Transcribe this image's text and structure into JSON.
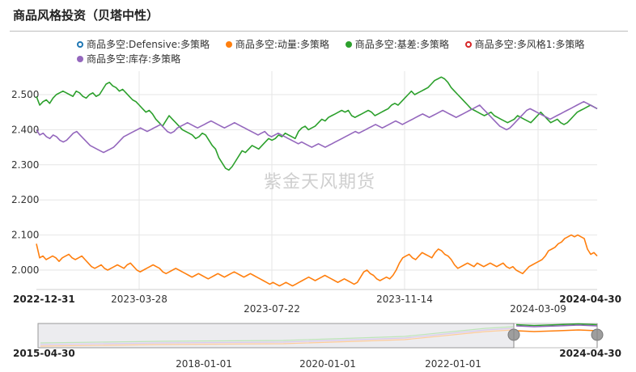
{
  "page_title": "商品风格投资（贝塔中性）",
  "watermark": "紫金天风期货",
  "chart_data": {
    "type": "line",
    "y_ticks": [
      "2.000",
      "2.100",
      "2.200",
      "2.300",
      "2.400",
      "2.500"
    ],
    "x_ticks_row1": [
      "2023-03-28",
      "2023-11-14"
    ],
    "x_ticks_row2": [
      "2023-07-22",
      "2024-03-09"
    ],
    "x_range_start": "2022-12-31",
    "x_range_end": "2024-04-30",
    "ylim": [
      1.955,
      2.56
    ],
    "grid": true,
    "legend_position": "top",
    "series": [
      {
        "name": "商品多空:Defensive:多策略",
        "color": "#1f77b4",
        "marker": "hollow",
        "visible": false,
        "values": []
      },
      {
        "name": "商品多空:动量:多策略",
        "color": "#ff7f0e",
        "marker": "filled",
        "visible": true,
        "values": [
          2.075,
          2.035,
          2.04,
          2.03,
          2.035,
          2.04,
          2.035,
          2.025,
          2.035,
          2.04,
          2.045,
          2.035,
          2.03,
          2.035,
          2.04,
          2.03,
          2.02,
          2.01,
          2.005,
          2.01,
          2.015,
          2.005,
          2.0,
          2.005,
          2.01,
          2.015,
          2.01,
          2.005,
          2.015,
          2.02,
          2.01,
          2.0,
          1.995,
          2.0,
          2.005,
          2.01,
          2.015,
          2.01,
          2.005,
          1.995,
          1.99,
          1.995,
          2.0,
          2.005,
          2.0,
          1.995,
          1.99,
          1.985,
          1.98,
          1.985,
          1.99,
          1.985,
          1.98,
          1.975,
          1.98,
          1.985,
          1.99,
          1.985,
          1.98,
          1.985,
          1.99,
          1.995,
          1.99,
          1.985,
          1.98,
          1.985,
          1.99,
          1.985,
          1.98,
          1.975,
          1.97,
          1.965,
          1.96,
          1.965,
          1.96,
          1.955,
          1.96,
          1.965,
          1.96,
          1.955,
          1.96,
          1.965,
          1.97,
          1.975,
          1.98,
          1.975,
          1.97,
          1.975,
          1.98,
          1.985,
          1.98,
          1.975,
          1.97,
          1.965,
          1.97,
          1.975,
          1.97,
          1.965,
          1.96,
          1.965,
          1.98,
          1.995,
          2.0,
          1.99,
          1.985,
          1.975,
          1.97,
          1.975,
          1.98,
          1.975,
          1.985,
          2.0,
          2.02,
          2.035,
          2.04,
          2.045,
          2.035,
          2.03,
          2.04,
          2.05,
          2.045,
          2.04,
          2.035,
          2.05,
          2.06,
          2.055,
          2.045,
          2.04,
          2.03,
          2.015,
          2.005,
          2.01,
          2.015,
          2.02,
          2.015,
          2.01,
          2.02,
          2.015,
          2.01,
          2.015,
          2.02,
          2.015,
          2.01,
          2.015,
          2.02,
          2.01,
          2.005,
          2.01,
          2.0,
          1.995,
          1.99,
          2.0,
          2.01,
          2.015,
          2.02,
          2.025,
          2.03,
          2.04,
          2.055,
          2.06,
          2.065,
          2.075,
          2.08,
          2.09,
          2.095,
          2.1,
          2.095,
          2.1,
          2.095,
          2.09,
          2.06,
          2.045,
          2.05,
          2.04
        ]
      },
      {
        "name": "商品多空:基差:多策略",
        "color": "#2ca02c",
        "marker": "filled",
        "visible": true,
        "values": [
          2.495,
          2.47,
          2.48,
          2.485,
          2.475,
          2.49,
          2.5,
          2.505,
          2.51,
          2.505,
          2.5,
          2.495,
          2.51,
          2.505,
          2.495,
          2.49,
          2.5,
          2.505,
          2.495,
          2.5,
          2.515,
          2.53,
          2.535,
          2.525,
          2.52,
          2.51,
          2.515,
          2.505,
          2.495,
          2.485,
          2.48,
          2.47,
          2.46,
          2.45,
          2.455,
          2.445,
          2.43,
          2.42,
          2.41,
          2.425,
          2.44,
          2.43,
          2.42,
          2.41,
          2.4,
          2.395,
          2.39,
          2.385,
          2.375,
          2.38,
          2.39,
          2.385,
          2.37,
          2.355,
          2.345,
          2.32,
          2.305,
          2.29,
          2.285,
          2.295,
          2.31,
          2.325,
          2.34,
          2.335,
          2.345,
          2.355,
          2.35,
          2.345,
          2.355,
          2.365,
          2.375,
          2.37,
          2.375,
          2.385,
          2.38,
          2.39,
          2.385,
          2.38,
          2.375,
          2.395,
          2.405,
          2.41,
          2.4,
          2.405,
          2.41,
          2.42,
          2.43,
          2.425,
          2.435,
          2.44,
          2.445,
          2.45,
          2.455,
          2.45,
          2.455,
          2.44,
          2.435,
          2.44,
          2.445,
          2.45,
          2.455,
          2.45,
          2.44,
          2.445,
          2.45,
          2.455,
          2.46,
          2.47,
          2.475,
          2.47,
          2.48,
          2.49,
          2.5,
          2.51,
          2.5,
          2.505,
          2.51,
          2.515,
          2.52,
          2.53,
          2.54,
          2.545,
          2.55,
          2.545,
          2.535,
          2.52,
          2.51,
          2.5,
          2.49,
          2.48,
          2.47,
          2.46,
          2.455,
          2.45,
          2.445,
          2.44,
          2.445,
          2.45,
          2.44,
          2.435,
          2.43,
          2.425,
          2.42,
          2.425,
          2.43,
          2.44,
          2.435,
          2.43,
          2.425,
          2.42,
          2.43,
          2.44,
          2.45,
          2.44,
          2.43,
          2.42,
          2.425,
          2.43,
          2.42,
          2.415,
          2.42,
          2.43,
          2.44,
          2.45,
          2.455,
          2.46,
          2.465,
          2.47,
          2.465,
          2.46
        ]
      },
      {
        "name": "商品多空:多风格1:多策略",
        "color": "#d62728",
        "marker": "hollow",
        "visible": false,
        "values": []
      },
      {
        "name": "商品多空:库存:多策略",
        "color": "#9467bd",
        "marker": "filled",
        "visible": true,
        "values": [
          2.4,
          2.385,
          2.39,
          2.38,
          2.375,
          2.385,
          2.38,
          2.37,
          2.365,
          2.37,
          2.38,
          2.39,
          2.395,
          2.385,
          2.375,
          2.365,
          2.355,
          2.35,
          2.345,
          2.34,
          2.335,
          2.34,
          2.345,
          2.35,
          2.36,
          2.37,
          2.38,
          2.385,
          2.39,
          2.395,
          2.4,
          2.405,
          2.4,
          2.395,
          2.4,
          2.405,
          2.41,
          2.415,
          2.405,
          2.395,
          2.39,
          2.395,
          2.405,
          2.41,
          2.415,
          2.42,
          2.415,
          2.41,
          2.405,
          2.41,
          2.415,
          2.42,
          2.425,
          2.42,
          2.415,
          2.41,
          2.405,
          2.41,
          2.415,
          2.42,
          2.415,
          2.41,
          2.405,
          2.4,
          2.395,
          2.39,
          2.385,
          2.39,
          2.395,
          2.385,
          2.38,
          2.385,
          2.39,
          2.385,
          2.38,
          2.375,
          2.37,
          2.365,
          2.36,
          2.365,
          2.36,
          2.355,
          2.35,
          2.355,
          2.36,
          2.355,
          2.35,
          2.355,
          2.36,
          2.365,
          2.37,
          2.375,
          2.38,
          2.385,
          2.39,
          2.395,
          2.39,
          2.395,
          2.4,
          2.405,
          2.41,
          2.415,
          2.41,
          2.405,
          2.41,
          2.415,
          2.42,
          2.425,
          2.42,
          2.415,
          2.42,
          2.425,
          2.43,
          2.435,
          2.44,
          2.445,
          2.44,
          2.435,
          2.44,
          2.445,
          2.45,
          2.455,
          2.45,
          2.445,
          2.44,
          2.435,
          2.44,
          2.445,
          2.45,
          2.455,
          2.46,
          2.465,
          2.47,
          2.46,
          2.45,
          2.44,
          2.43,
          2.42,
          2.41,
          2.405,
          2.4,
          2.405,
          2.415,
          2.425,
          2.435,
          2.445,
          2.455,
          2.46,
          2.455,
          2.45,
          2.445,
          2.44,
          2.435,
          2.43,
          2.435,
          2.44,
          2.445,
          2.45,
          2.455,
          2.46,
          2.465,
          2.47,
          2.475,
          2.48,
          2.475,
          2.47,
          2.465,
          2.46
        ]
      }
    ]
  },
  "navigator": {
    "start_label": "2015-04-30",
    "end_label": "2024-04-30",
    "ticks": [
      "2018-01-01",
      "2020-01-01",
      "2022-01-01"
    ]
  }
}
